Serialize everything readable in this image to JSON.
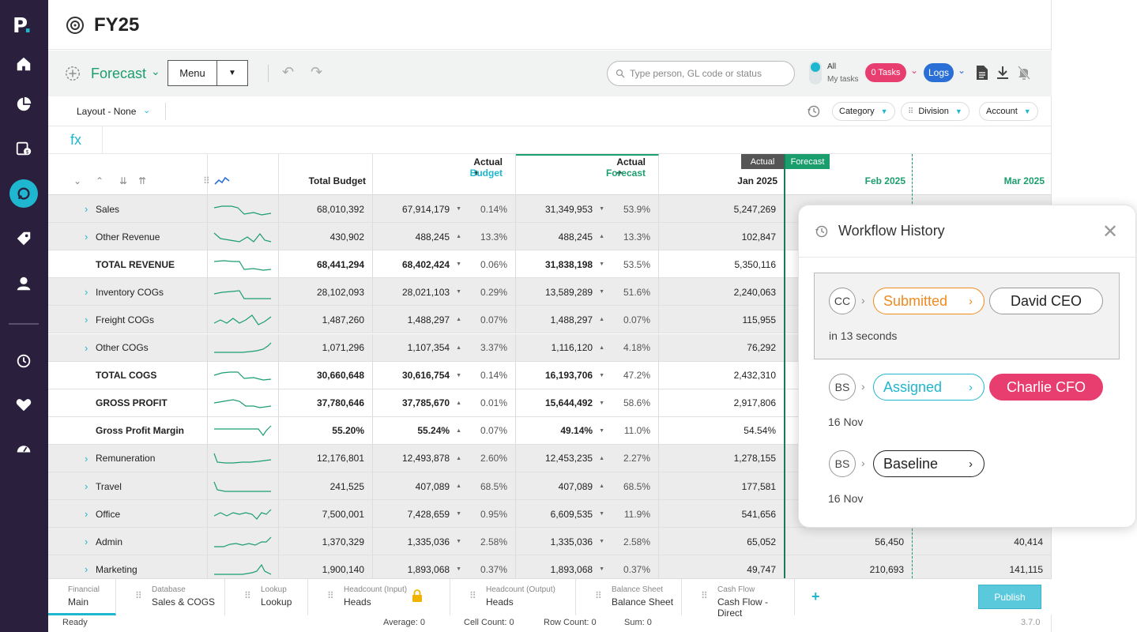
{
  "app": {
    "title": "FY25",
    "logo": "P",
    "logo_dot": "."
  },
  "sidebar": {
    "icons": [
      "home-icon",
      "pie-chart-icon",
      "budget-icon",
      "planning-icon",
      "tag-icon",
      "user-icon",
      "history-icon",
      "heart-icon",
      "gauge-icon"
    ]
  },
  "toolbar": {
    "scenario": "Forecast",
    "menu_label": "Menu",
    "search_placeholder": "Type person, GL code or status",
    "toggle_all": "All",
    "toggle_my": "My tasks",
    "tasks_label": "0 Tasks",
    "logs_label": "Logs"
  },
  "layoutbar": {
    "layout_label": "Layout - None",
    "chips": [
      "Category",
      "Division",
      "Account"
    ]
  },
  "formula": {
    "fx": "fx"
  },
  "grid": {
    "headers": {
      "total_budget": "Total Budget",
      "actual_budget_a": "Actual +",
      "actual_budget_b": "Budget",
      "actual_forecast_a": "Actual +",
      "actual_forecast_b": "Forecast",
      "jan": "Jan 2025",
      "feb": "Feb 2025",
      "mar": "Mar 2025"
    },
    "tags": {
      "actual": "Actual",
      "forecast": "Forecast"
    },
    "rows": [
      {
        "name": "Sales",
        "expand": true,
        "bold": false,
        "total_budget": "68,010,392",
        "ab": "67,914,179",
        "ab_dir": "down",
        "ab_pct": "0.14%",
        "af": "31,349,953",
        "af_dir": "down",
        "af_pct": "53.9%",
        "jan": "5,247,269",
        "feb": "",
        "mar": ""
      },
      {
        "name": "Other Revenue",
        "expand": true,
        "bold": false,
        "total_budget": "430,902",
        "ab": "488,245",
        "ab_dir": "up",
        "ab_pct": "13.3%",
        "af": "488,245",
        "af_dir": "up",
        "af_pct": "13.3%",
        "jan": "102,847",
        "feb": "",
        "mar": ""
      },
      {
        "name": "TOTAL REVENUE",
        "expand": false,
        "bold": true,
        "total_budget": "68,441,294",
        "ab": "68,402,424",
        "ab_dir": "down",
        "ab_pct": "0.06%",
        "af": "31,838,198",
        "af_dir": "down",
        "af_pct": "53.5%",
        "jan": "5,350,116",
        "feb": "",
        "mar": ""
      },
      {
        "name": "Inventory COGs",
        "expand": true,
        "bold": false,
        "total_budget": "28,102,093",
        "ab": "28,021,103",
        "ab_dir": "down",
        "ab_pct": "0.29%",
        "af": "13,589,289",
        "af_dir": "down",
        "af_pct": "51.6%",
        "jan": "2,240,063",
        "feb": "",
        "mar": ""
      },
      {
        "name": "Freight COGs",
        "expand": true,
        "bold": false,
        "total_budget": "1,487,260",
        "ab": "1,488,297",
        "ab_dir": "up",
        "ab_pct": "0.07%",
        "af": "1,488,297",
        "af_dir": "up",
        "af_pct": "0.07%",
        "jan": "115,955",
        "feb": "",
        "mar": ""
      },
      {
        "name": "Other COGs",
        "expand": true,
        "bold": false,
        "total_budget": "1,071,296",
        "ab": "1,107,354",
        "ab_dir": "up",
        "ab_pct": "3.37%",
        "af": "1,116,120",
        "af_dir": "up",
        "af_pct": "4.18%",
        "jan": "76,292",
        "feb": "",
        "mar": ""
      },
      {
        "name": "TOTAL COGS",
        "expand": false,
        "bold": true,
        "total_budget": "30,660,648",
        "ab": "30,616,754",
        "ab_dir": "down",
        "ab_pct": "0.14%",
        "af": "16,193,706",
        "af_dir": "down",
        "af_pct": "47.2%",
        "jan": "2,432,310",
        "feb": "",
        "mar": ""
      },
      {
        "name": "GROSS PROFIT",
        "expand": false,
        "bold": true,
        "total_budget": "37,780,646",
        "ab": "37,785,670",
        "ab_dir": "up",
        "ab_pct": "0.01%",
        "af": "15,644,492",
        "af_dir": "down",
        "af_pct": "58.6%",
        "jan": "2,917,806",
        "feb": "",
        "mar": ""
      },
      {
        "name": "Gross Profit Margin",
        "expand": false,
        "bold": true,
        "total_budget": "55.20%",
        "ab": "55.24%",
        "ab_dir": "up",
        "ab_pct": "0.07%",
        "af": "49.14%",
        "af_dir": "down",
        "af_pct": "11.0%",
        "jan": "54.54%",
        "feb": "",
        "mar": ""
      },
      {
        "name": "Remuneration",
        "expand": true,
        "bold": false,
        "total_budget": "12,176,801",
        "ab": "12,493,878",
        "ab_dir": "up",
        "ab_pct": "2.60%",
        "af": "12,453,235",
        "af_dir": "up",
        "af_pct": "2.27%",
        "jan": "1,278,155",
        "feb": "",
        "mar": ""
      },
      {
        "name": "Travel",
        "expand": true,
        "bold": false,
        "total_budget": "241,525",
        "ab": "407,089",
        "ab_dir": "up",
        "ab_pct": "68.5%",
        "af": "407,089",
        "af_dir": "up",
        "af_pct": "68.5%",
        "jan": "177,581",
        "feb": "",
        "mar": ""
      },
      {
        "name": "Office",
        "expand": true,
        "bold": false,
        "total_budget": "7,500,001",
        "ab": "7,428,659",
        "ab_dir": "down",
        "ab_pct": "0.95%",
        "af": "6,609,535",
        "af_dir": "down",
        "af_pct": "11.9%",
        "jan": "541,656",
        "feb": "",
        "mar": ""
      },
      {
        "name": "Admin",
        "expand": true,
        "bold": false,
        "total_budget": "1,370,329",
        "ab": "1,335,036",
        "ab_dir": "down",
        "ab_pct": "2.58%",
        "af": "1,335,036",
        "af_dir": "down",
        "af_pct": "2.58%",
        "jan": "65,052",
        "feb": "56,450",
        "mar": "40,414"
      },
      {
        "name": "Marketing",
        "expand": true,
        "bold": false,
        "total_budget": "1,900,140",
        "ab": "1,893,068",
        "ab_dir": "down",
        "ab_pct": "0.37%",
        "af": "1,893,068",
        "af_dir": "down",
        "af_pct": "0.37%",
        "jan": "49,747",
        "feb": "210,693",
        "mar": "141,115"
      }
    ]
  },
  "tabs": [
    {
      "group": "Financial",
      "name": "Main",
      "active": true,
      "grip": false,
      "lock": false
    },
    {
      "group": "Database",
      "name": "Sales & COGS",
      "active": false,
      "grip": true,
      "lock": false
    },
    {
      "group": "Lookup",
      "name": "Lookup",
      "active": false,
      "grip": true,
      "lock": false
    },
    {
      "group": "Headcount (Input)",
      "name": "Heads",
      "active": false,
      "grip": true,
      "lock": true
    },
    {
      "group": "Headcount (Output)",
      "name": "Heads",
      "active": false,
      "grip": true,
      "lock": false
    },
    {
      "group": "Balance Sheet",
      "name": "Balance Sheet",
      "active": false,
      "grip": true,
      "lock": false
    },
    {
      "group": "Cash Flow",
      "name": "Cash Flow - Direct",
      "active": false,
      "grip": true,
      "lock": false
    }
  ],
  "tabs_actions": {
    "add": "+",
    "publish": "Publish"
  },
  "statusbar": {
    "state": "Ready",
    "average": "Average: 0",
    "cell_count": "Cell Count: 0",
    "row_count": "Row Count: 0",
    "sum": "Sum: 0",
    "version": "3.7.0"
  },
  "workflow": {
    "title": "Workflow History",
    "entries": [
      {
        "initials": "CC",
        "status": "Submitted",
        "assignee": "David CEO",
        "time": "in 13 seconds"
      },
      {
        "initials": "BS",
        "status": "Assigned",
        "assignee": "Charlie CFO",
        "time": "16 Nov"
      },
      {
        "initials": "BS",
        "status": "Baseline",
        "assignee": "",
        "time": "16 Nov"
      }
    ]
  },
  "colors": {
    "accent": "#1fb6cf",
    "forecast_green": "#1a9e6e",
    "sidebar": "#2a1f3d",
    "pink": "#e83d6f",
    "orange": "#ef8a1f"
  }
}
